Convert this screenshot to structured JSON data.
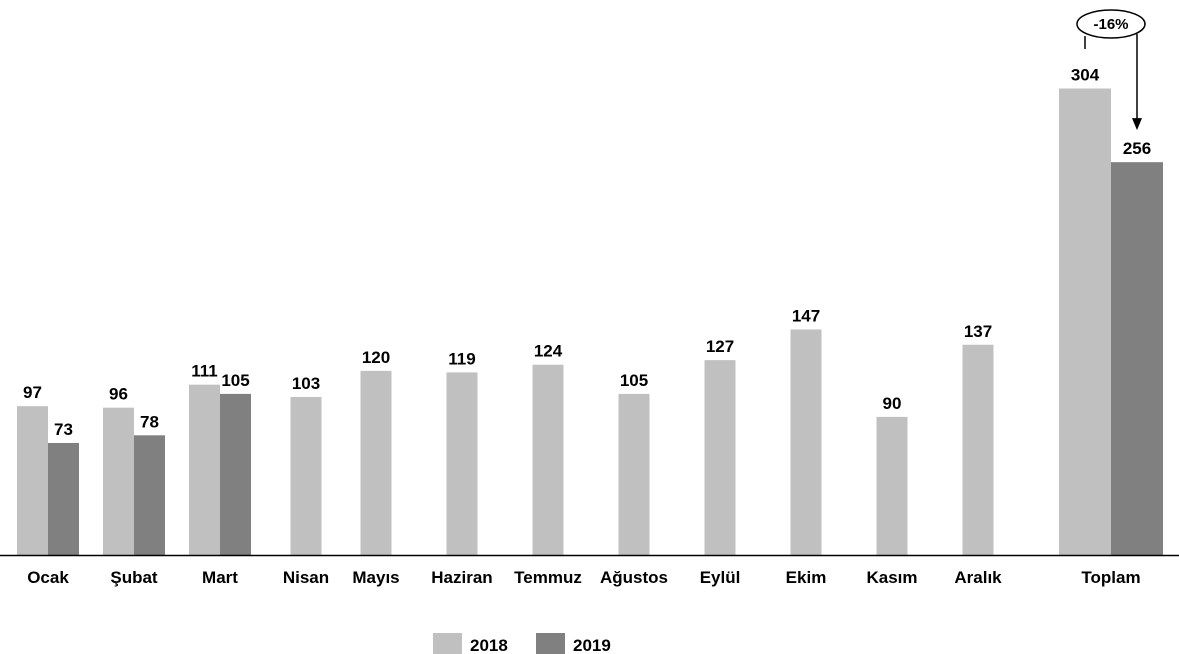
{
  "chart_data": {
    "type": "bar",
    "categories": [
      "Ocak",
      "Şubat",
      "Mart",
      "Nisan",
      "Mayıs",
      "Haziran",
      "Temmuz",
      "Ağustos",
      "Eylül",
      "Ekim",
      "Kasım",
      "Aralık",
      "Toplam"
    ],
    "series": [
      {
        "name": "2018",
        "color": "#c0c0c0",
        "values": [
          97,
          96,
          111,
          103,
          120,
          119,
          124,
          105,
          127,
          147,
          90,
          137,
          304
        ]
      },
      {
        "name": "2019",
        "color": "#808080",
        "values": [
          73,
          78,
          105,
          null,
          null,
          null,
          null,
          null,
          null,
          null,
          null,
          null,
          256
        ]
      }
    ],
    "annotation": {
      "label": "-16%",
      "from_series": 0,
      "to_series": 1,
      "category": "Toplam"
    },
    "legend": "bottom-center",
    "grid": false
  }
}
